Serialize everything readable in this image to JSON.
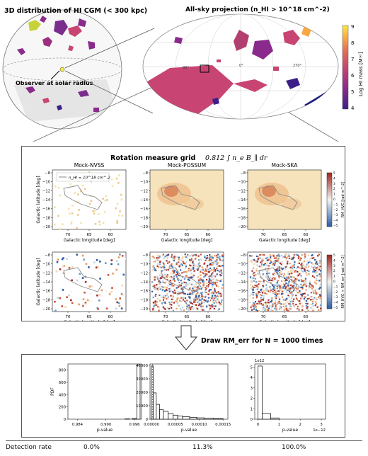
{
  "top": {
    "sphere_title": "3D distribution of HI CGM (< 300 kpc)",
    "observer_label": "Observer at solar radius",
    "allsky_title": "All-sky projection (n_HI > 10^18 cm^-2)",
    "allsky_lon_labels": [
      "90°",
      "0°",
      "270°"
    ],
    "colorbar_label": "Log HI mass [M☉]",
    "colorbar_ticks": [
      "9",
      "8",
      "7",
      "6",
      "5",
      "4"
    ],
    "colorbar_colors": [
      "#f7e93d",
      "#f9a743",
      "#e56d57",
      "#c84573",
      "#8a2a8c",
      "#3c1f88"
    ]
  },
  "rm": {
    "title": "Rotation measure grid",
    "formula": "0.812 ∫ n_e B_∥ dr",
    "columns": [
      "Mock-NVSS",
      "Mock-POSSUM",
      "Mock-SKA"
    ],
    "legend": "n_HI = 10^18 cm^-2",
    "xlabel": "Galactic longitude [deg]",
    "ylabel": "Galactic latitude [deg]",
    "xticks": [
      "70",
      "65",
      "60"
    ],
    "yticks": [
      "−8",
      "−10",
      "−12",
      "−14",
      "−16",
      "−18",
      "−20"
    ],
    "cbar_top_label": "RM_HVC [rad m^-2]",
    "cbar_bottom_label": "RM_HVC + RM_err [rad m^-2]",
    "cbar_ticks": [
      "5",
      "4",
      "3",
      "2",
      "1",
      "0",
      "−1",
      "−2",
      "−3",
      "−4",
      "−5"
    ]
  },
  "arrow": {
    "label": "Draw RM_err for N = 1000 times"
  },
  "chart_data": [
    {
      "type": "bar",
      "title": "",
      "xlabel": "p-value",
      "ylabel": "PDF",
      "xlim": [
        0.982,
        0.9975
      ],
      "ylim": [
        0,
        900
      ],
      "xticks": [
        "0.984",
        "0.990",
        "0.996"
      ],
      "yticks": [
        "0",
        "200",
        "400",
        "600",
        "800"
      ],
      "bins": [
        [
          0.994,
          0.995,
          5
        ],
        [
          0.9955,
          0.9965,
          8
        ],
        [
          0.9965,
          0.9972,
          880
        ]
      ]
    },
    {
      "type": "bar",
      "title": "",
      "xlabel": "p-value",
      "ylabel": "",
      "xlim": [
        -3e-06,
        0.00016
      ],
      "ylim": [
        0,
        41000
      ],
      "xticks": [
        "0.00000",
        "0.00005",
        "0.00010",
        "0.00015"
      ],
      "yticks": [
        "0",
        "10000",
        "20000",
        "30000",
        "40000"
      ],
      "dashed_line_x": 1e-06,
      "bins": [
        [
          0.0,
          4e-06,
          39500
        ],
        [
          4e-06,
          1e-05,
          19500
        ],
        [
          1e-05,
          1.7e-05,
          11000
        ],
        [
          1.7e-05,
          2.5e-05,
          7000
        ],
        [
          2.5e-05,
          3.5e-05,
          5800
        ],
        [
          3.5e-05,
          4.5e-05,
          4200
        ],
        [
          4.5e-05,
          5.5e-05,
          3000
        ],
        [
          5.5e-05,
          6.5e-05,
          2400
        ],
        [
          6.5e-05,
          8e-05,
          1900
        ],
        [
          8e-05,
          9.5e-05,
          1400
        ],
        [
          9.5e-05,
          0.00011,
          1000
        ],
        [
          0.00011,
          0.00013,
          700
        ],
        [
          0.00013,
          0.00015,
          400
        ]
      ]
    },
    {
      "type": "bar",
      "title": "",
      "xlabel": "p-value",
      "ylabel": "",
      "exponent_y": "1e12",
      "exponent_x": "1e−12",
      "xlim": [
        -0.15,
        3.2
      ],
      "ylim": [
        0,
        5.3
      ],
      "xticks": [
        "0",
        "1",
        "2",
        "3"
      ],
      "yticks": [
        "0",
        "1",
        "2",
        "3",
        "4",
        "5"
      ],
      "bins": [
        [
          0.0,
          0.2,
          5.1
        ],
        [
          0.2,
          0.6,
          0.55
        ],
        [
          0.6,
          1.0,
          0.12
        ]
      ]
    }
  ],
  "detection": {
    "label": "Detection rate",
    "values": [
      "0.0%",
      "11.3%",
      "100.0%"
    ]
  }
}
